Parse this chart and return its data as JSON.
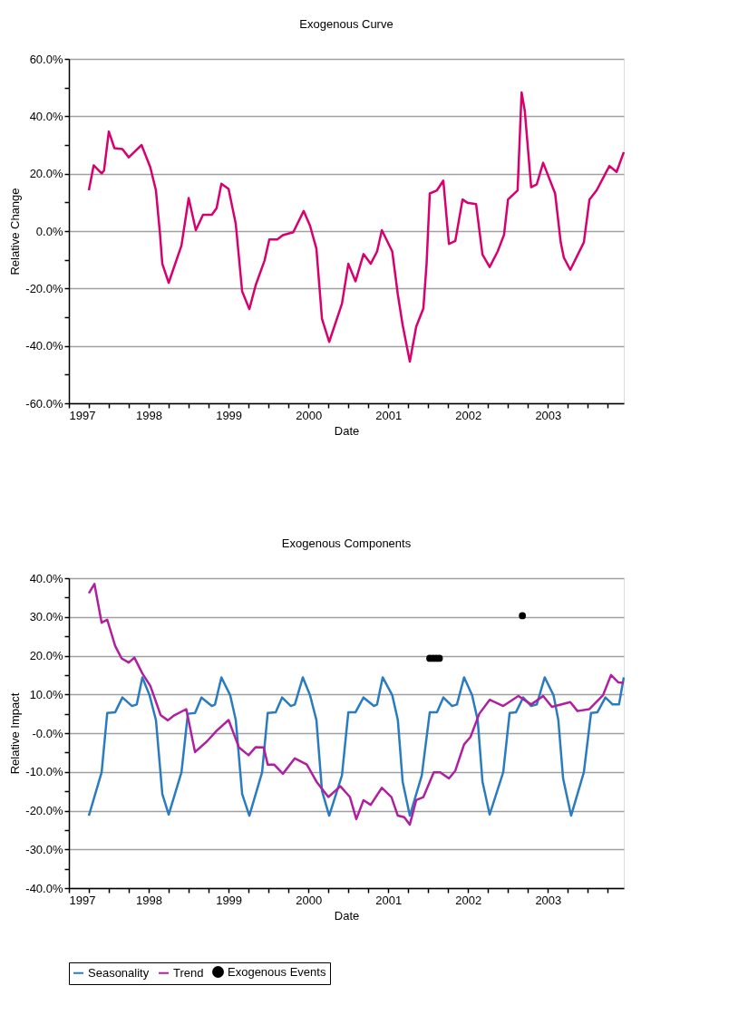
{
  "chart_data": [
    {
      "type": "line",
      "title": "Exogenous Curve",
      "xlabel": "Date",
      "ylabel": "Relative Change",
      "grid": "y",
      "legend": false,
      "xlim": [
        1997,
        2003.95
      ],
      "xticks": [
        1997,
        {
          "value": 1997.25,
          "label": null
        },
        {
          "value": 1997.5,
          "label": null
        },
        {
          "value": 1997.75,
          "label": null
        },
        1998,
        {
          "value": 1998.25,
          "label": null
        },
        {
          "value": 1998.5,
          "label": null
        },
        {
          "value": 1998.75,
          "label": null
        },
        1999,
        {
          "value": 1999.25,
          "label": null
        },
        {
          "value": 1999.5,
          "label": null
        },
        {
          "value": 1999.75,
          "label": null
        },
        2000,
        {
          "value": 2000.25,
          "label": null
        },
        {
          "value": 2000.5,
          "label": null
        },
        {
          "value": 2000.75,
          "label": null
        },
        2001,
        {
          "value": 2001.25,
          "label": null
        },
        {
          "value": 2001.5,
          "label": null
        },
        {
          "value": 2001.75,
          "label": null
        },
        2002,
        {
          "value": 2002.25,
          "label": null
        },
        {
          "value": 2002.5,
          "label": null
        },
        {
          "value": 2002.75,
          "label": null
        },
        2003,
        {
          "value": 2003.25,
          "label": null
        },
        {
          "value": 2003.5,
          "label": null
        },
        {
          "value": 2003.75,
          "label": null
        }
      ],
      "ylim": [
        -60,
        60
      ],
      "yticks": [
        {
          "value": -60,
          "label": "-60.0%"
        },
        {
          "value": -50,
          "label": null
        },
        {
          "value": -40,
          "label": "-40.0%"
        },
        {
          "value": -30,
          "label": null
        },
        {
          "value": -20,
          "label": "-20.0%"
        },
        {
          "value": -10,
          "label": null
        },
        {
          "value": 0,
          "label": "0.0%"
        },
        {
          "value": 10,
          "label": null
        },
        {
          "value": 20,
          "label": "20.0%"
        },
        {
          "value": 30,
          "label": null
        },
        {
          "value": 40,
          "label": "40.0%"
        },
        {
          "value": 50,
          "label": null
        },
        {
          "value": 60,
          "label": "60.0%"
        }
      ],
      "x": [
        1997.25,
        1997.31,
        1997.41,
        1997.44,
        1997.5,
        1997.57,
        1997.67,
        1997.75,
        1997.91,
        1998.02,
        1998.09,
        1998.14,
        1998.17,
        1998.25,
        1998.41,
        1998.5,
        1998.59,
        1998.68,
        1998.79,
        1998.85,
        1998.91,
        1999.0,
        1999.09,
        1999.17,
        1999.26,
        1999.34,
        1999.45,
        1999.51,
        1999.61,
        1999.68,
        1999.81,
        1999.94,
        2000.02,
        2000.1,
        2000.17,
        2000.26,
        2000.42,
        2000.5,
        2000.59,
        2000.69,
        2000.78,
        2000.86,
        2000.92,
        2001.05,
        2001.12,
        2001.18,
        2001.27,
        2001.35,
        2001.44,
        2001.48,
        2001.52,
        2001.61,
        2001.69,
        2001.76,
        2001.84,
        2001.93,
        2001.99,
        2002.1,
        2002.18,
        2002.27,
        2002.37,
        2002.45,
        2002.5,
        2002.62,
        2002.67,
        2002.71,
        2002.79,
        2002.86,
        2002.94,
        2003.09,
        2003.16,
        2003.2,
        2003.28,
        2003.45,
        2003.52,
        2003.61,
        2003.77,
        2003.86,
        2003.95
      ],
      "series": [
        {
          "color": "#d8006e",
          "values": [
            14.2,
            22.9,
            20.1,
            21.1,
            34.7,
            28.9,
            28.6,
            25.7,
            30.0,
            22.2,
            14.2,
            -0.7,
            -11.4,
            -18.0,
            -5.0,
            11.5,
            0.3,
            5.7,
            5.7,
            8.0,
            16.5,
            14.7,
            2.5,
            -21.0,
            -27.2,
            -18.8,
            -10.3,
            -2.9,
            -2.9,
            -1.4,
            -0.4,
            7.0,
            1.9,
            -6.1,
            -30.6,
            -38.6,
            -25.3,
            -11.4,
            -17.5,
            -8.0,
            -11.4,
            -7.1,
            0.3,
            -7.1,
            -22.1,
            -32.7,
            -45.5,
            -33.3,
            -26.9,
            -11.4,
            13.1,
            14.2,
            17.6,
            -4.5,
            -3.4,
            11.0,
            9.9,
            9.4,
            -8.2,
            -12.5,
            -7.1,
            -1.3,
            11.0,
            14.2,
            48.3,
            41.9,
            15.3,
            16.3,
            23.8,
            13.1,
            -3.9,
            -9.3,
            -13.5,
            -3.9,
            11.0,
            14.2,
            22.7,
            20.6,
            27.5
          ]
        }
      ]
    },
    {
      "type": "line",
      "title": "Exogenous Components",
      "xlabel": "Date",
      "ylabel": "Relative Impact",
      "grid": "y",
      "legend": "bottom",
      "xlim": [
        1997,
        2003.95
      ],
      "xticks": [
        1997,
        {
          "value": 1997.25,
          "label": null
        },
        {
          "value": 1997.5,
          "label": null
        },
        {
          "value": 1997.75,
          "label": null
        },
        1998,
        {
          "value": 1998.25,
          "label": null
        },
        {
          "value": 1998.5,
          "label": null
        },
        {
          "value": 1998.75,
          "label": null
        },
        1999,
        {
          "value": 1999.25,
          "label": null
        },
        {
          "value": 1999.5,
          "label": null
        },
        {
          "value": 1999.75,
          "label": null
        },
        2000,
        {
          "value": 2000.25,
          "label": null
        },
        {
          "value": 2000.5,
          "label": null
        },
        {
          "value": 2000.75,
          "label": null
        },
        2001,
        {
          "value": 2001.25,
          "label": null
        },
        {
          "value": 2001.5,
          "label": null
        },
        {
          "value": 2001.75,
          "label": null
        },
        2002,
        {
          "value": 2002.25,
          "label": null
        },
        {
          "value": 2002.5,
          "label": null
        },
        {
          "value": 2002.75,
          "label": null
        },
        2003,
        {
          "value": 2003.25,
          "label": null
        },
        {
          "value": 2003.5,
          "label": null
        },
        {
          "value": 2003.75,
          "label": null
        }
      ],
      "ylim": [
        -40,
        40
      ],
      "yticks": [
        {
          "value": -40,
          "label": "-40.0%"
        },
        {
          "value": -35,
          "label": null
        },
        {
          "value": -30,
          "label": "-30.0%"
        },
        {
          "value": -25,
          "label": null
        },
        {
          "value": -20,
          "label": "-20.0%"
        },
        {
          "value": -15,
          "label": null
        },
        {
          "value": -10,
          "label": "-10.0%"
        },
        {
          "value": -5,
          "label": null
        },
        {
          "value": 0,
          "label": "-0.0%"
        },
        {
          "value": 5,
          "label": null
        },
        {
          "value": 10,
          "label": "10.0%"
        },
        {
          "value": 15,
          "label": null
        },
        {
          "value": 20,
          "label": "20.0%"
        },
        {
          "value": 25,
          "label": null
        },
        {
          "value": 30,
          "label": "30.0%"
        },
        {
          "value": 35,
          "label": null
        },
        {
          "value": 40,
          "label": "40.0%"
        }
      ],
      "series": [
        {
          "name": "Seasonality",
          "type": "line",
          "color": "#2a7bc0",
          "x": [
            1997.25,
            1997.41,
            1997.48,
            1997.58,
            1997.67,
            1997.79,
            1997.85,
            1997.92,
            1998.01,
            1998.09,
            1998.17,
            1998.25,
            1998.41,
            1998.49,
            1998.58,
            1998.66,
            1998.79,
            1998.83,
            1998.91,
            1999.02,
            1999.09,
            1999.17,
            1999.26,
            1999.42,
            1999.49,
            1999.59,
            1999.67,
            1999.78,
            1999.83,
            1999.93,
            2000.02,
            2000.1,
            2000.17,
            2000.26,
            2000.42,
            2000.5,
            2000.59,
            2000.69,
            2000.82,
            2000.86,
            2000.93,
            2001.05,
            2001.12,
            2001.18,
            2001.27,
            2001.42,
            2001.52,
            2001.61,
            2001.69,
            2001.8,
            2001.86,
            2001.95,
            2002.05,
            2002.12,
            2002.18,
            2002.27,
            2002.44,
            2002.52,
            2002.6,
            2002.69,
            2002.79,
            2002.86,
            2002.96,
            2003.07,
            2003.13,
            2003.19,
            2003.29,
            2003.45,
            2003.54,
            2003.62,
            2003.72,
            2003.81,
            2003.89,
            2003.95
          ],
          "values": [
            -21.3,
            -10.1,
            5.2,
            5.4,
            9.2,
            7.0,
            7.4,
            14.4,
            9.8,
            3.4,
            -15.7,
            -21.0,
            -10.1,
            5.0,
            5.2,
            9.2,
            7.0,
            7.4,
            14.4,
            9.8,
            3.4,
            -15.7,
            -21.3,
            -10.1,
            5.2,
            5.4,
            9.2,
            7.0,
            7.4,
            14.4,
            9.8,
            3.4,
            -14.9,
            -21.3,
            -10.9,
            5.4,
            5.4,
            9.2,
            7.0,
            7.4,
            14.4,
            9.8,
            3.4,
            -12.5,
            -21.3,
            -10.9,
            5.4,
            5.4,
            9.2,
            7.0,
            7.4,
            14.4,
            9.8,
            3.4,
            -12.5,
            -21.0,
            -10.1,
            5.2,
            5.4,
            9.2,
            7.0,
            7.4,
            14.4,
            9.8,
            3.4,
            -11.7,
            -21.3,
            -10.1,
            5.2,
            5.4,
            9.2,
            7.4,
            7.4,
            14.4
          ]
        },
        {
          "name": "Trend",
          "type": "line",
          "color": "#b0209e",
          "x": [
            1997.25,
            1997.32,
            1997.41,
            1997.48,
            1997.58,
            1997.66,
            1997.75,
            1997.82,
            1997.92,
            1998.02,
            1998.15,
            1998.24,
            1998.32,
            1998.47,
            1998.58,
            1998.73,
            1998.85,
            1999.0,
            1999.13,
            1999.25,
            1999.34,
            1999.44,
            1999.49,
            1999.57,
            1999.68,
            1999.83,
            1999.98,
            2000.1,
            2000.25,
            2000.4,
            2000.52,
            2000.6,
            2000.69,
            2000.78,
            2000.92,
            2001.04,
            2001.12,
            2001.2,
            2001.27,
            2001.35,
            2001.44,
            2001.57,
            2001.65,
            2001.76,
            2001.84,
            2001.95,
            2002.03,
            2002.14,
            2002.27,
            2002.44,
            2002.63,
            2002.79,
            2002.94,
            2003.05,
            2003.28,
            2003.37,
            2003.52,
            2003.69,
            2003.79,
            2003.88,
            2003.95
          ],
          "values": [
            36.1,
            38.5,
            28.5,
            29.3,
            22.5,
            19.3,
            18.2,
            19.5,
            15.4,
            12.2,
            4.6,
            3.3,
            4.6,
            6.2,
            -4.9,
            -2.1,
            0.6,
            3.4,
            -3.7,
            -5.7,
            -3.6,
            -3.7,
            -8.1,
            -8.1,
            -10.5,
            -6.5,
            -8.1,
            -12.5,
            -16.5,
            -13.7,
            -16.5,
            -22.2,
            -17.3,
            -18.5,
            -14.1,
            -16.5,
            -21.3,
            -21.7,
            -23.6,
            -17.3,
            -16.5,
            -10.1,
            -10.1,
            -11.7,
            -9.7,
            -2.9,
            -1.0,
            5.0,
            8.6,
            7.0,
            9.6,
            7.4,
            9.6,
            6.8,
            8.0,
            5.7,
            6.2,
            9.8,
            15.0,
            13.1,
            13.0
          ]
        },
        {
          "name": "Exogenous Events",
          "type": "scatter",
          "marker": "circle",
          "color": "#000000",
          "x": [
            2001.52,
            2001.56,
            2001.6,
            2001.64,
            2002.68
          ],
          "values": [
            19.3,
            19.3,
            19.3,
            19.3,
            30.3
          ]
        }
      ]
    }
  ]
}
